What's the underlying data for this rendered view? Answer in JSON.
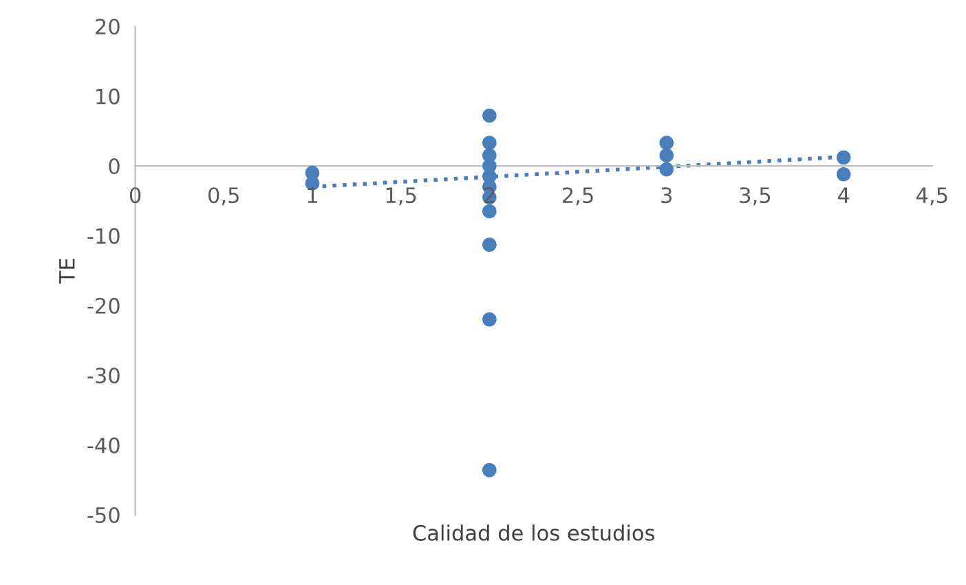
{
  "chart_data": {
    "type": "scatter",
    "xlabel": "Calidad de los estudios",
    "ylabel": "TE",
    "marker": "circle",
    "grid": false,
    "legend": false,
    "xlim": [
      0,
      4.5
    ],
    "ylim": [
      -50,
      20
    ],
    "xticks": [
      0,
      {
        "value": 0.5,
        "label": "0,5"
      },
      1,
      {
        "value": 1.5,
        "label": "1,5"
      },
      2,
      {
        "value": 2.5,
        "label": "2,5"
      },
      3,
      {
        "value": 3.5,
        "label": "3,5"
      },
      4,
      {
        "value": 4.5,
        "label": "4,5"
      }
    ],
    "yticks": [
      -50,
      -40,
      -30,
      -20,
      -10,
      0,
      10,
      20
    ],
    "series": [
      {
        "color": "#4a7ebb",
        "x": [
          1,
          1,
          2,
          2,
          2,
          2,
          2,
          2,
          2,
          2,
          2,
          2,
          2,
          3,
          3,
          3,
          4,
          4
        ],
        "values": [
          -1,
          -2.5,
          7.2,
          3.3,
          1.5,
          0,
          -1.5,
          -3,
          -4.5,
          -6.5,
          -11.3,
          -22,
          -43.6,
          3.3,
          1.5,
          -0.5,
          1.2,
          -1.2
        ]
      },
      {
        "type": "line",
        "color": "#4a7ebb",
        "line_style": "dotted",
        "marker": "none",
        "x": [
          1,
          4
        ],
        "values": [
          -3,
          1.3
        ]
      }
    ]
  }
}
